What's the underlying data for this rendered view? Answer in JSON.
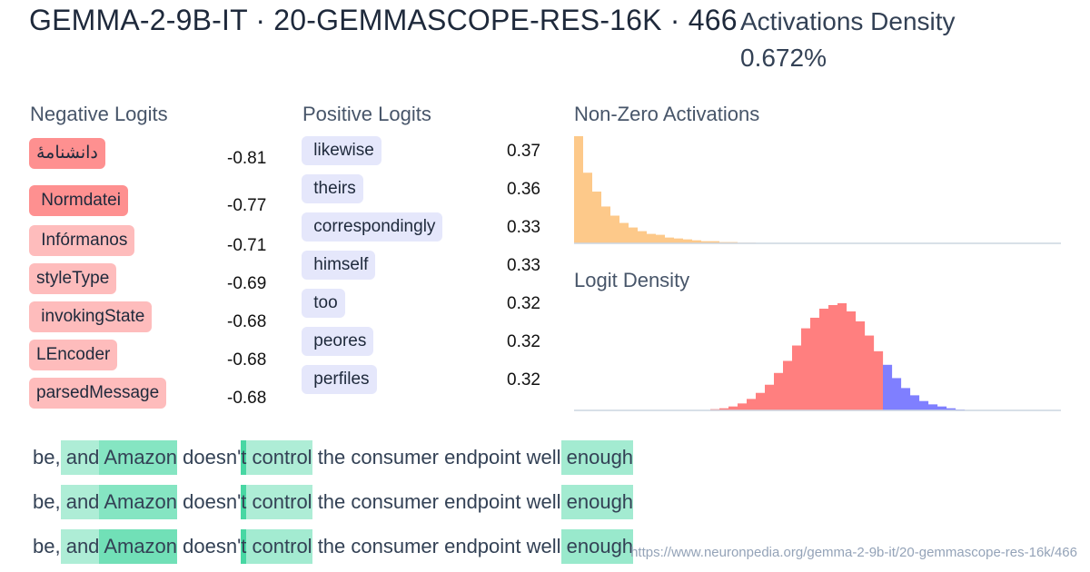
{
  "header": {
    "title": "GEMMA-2-9B-IT · 20-GEMMASCOPE-RES-16K · 466",
    "density_label": "Activations Density",
    "density_value": "0.672%"
  },
  "negative_logits": {
    "heading": "Negative Logits",
    "items": [
      {
        "token": "دانشنامهٔ",
        "value": "-0.81",
        "color": "#fe9090"
      },
      {
        "token": " Normdatei",
        "value": "-0.77",
        "color": "#fe9090"
      },
      {
        "token": " Infórmanos",
        "value": "-0.71",
        "color": "#febcbc"
      },
      {
        "token": "styleType",
        "value": "-0.69",
        "color": "#febcbc"
      },
      {
        "token": " invokingState",
        "value": "-0.68",
        "color": "#febcbc"
      },
      {
        "token": "LEncoder",
        "value": "-0.68",
        "color": "#febcbc"
      },
      {
        "token": "parsedMessage",
        "value": "-0.68",
        "color": "#febcbc"
      }
    ]
  },
  "positive_logits": {
    "heading": "Positive Logits",
    "items": [
      {
        "token": " likewise",
        "value": "0.37"
      },
      {
        "token": " theirs",
        "value": "0.36"
      },
      {
        "token": " correspondingly",
        "value": "0.33"
      },
      {
        "token": " himself",
        "value": "0.33"
      },
      {
        "token": " too",
        "value": "0.32"
      },
      {
        "token": " peores",
        "value": "0.32"
      },
      {
        "token": " perfiles",
        "value": "0.32"
      }
    ]
  },
  "nonzero_activations": {
    "heading": "Non-Zero Activations",
    "color": "#fdc98a",
    "values": [
      352,
      232,
      170,
      121,
      91,
      67,
      52,
      40,
      31,
      28,
      19,
      16,
      13,
      10,
      7,
      7,
      4,
      4,
      2,
      2,
      1
    ]
  },
  "logit_density": {
    "heading": "Logit Density",
    "negative_color": "#ff7f7f",
    "positive_color": "#7f7fff",
    "negative_values": [
      4,
      7,
      13,
      23,
      38,
      58,
      85,
      124,
      164,
      215,
      272,
      307,
      337,
      349,
      355,
      328,
      295,
      248,
      196
    ],
    "positive_values": [
      151,
      107,
      74,
      50,
      31,
      20,
      13,
      7,
      3
    ]
  },
  "examples": [
    [
      {
        "t": "be,",
        "a": 0
      },
      {
        "t": " and",
        "a": 0.4
      },
      {
        "t": " Amazon",
        "a": 0.6
      },
      {
        "t": " doesn'",
        "a": 0
      },
      {
        "t": "t",
        "a": 0.9
      },
      {
        "t": " control",
        "a": 0.4
      },
      {
        "t": " the consumer endpoint well",
        "a": 0
      },
      {
        "t": " enough",
        "a": 0.45
      }
    ],
    [
      {
        "t": "be,",
        "a": 0
      },
      {
        "t": " and",
        "a": 0.4
      },
      {
        "t": " Amazon",
        "a": 0.6
      },
      {
        "t": " doesn'",
        "a": 0
      },
      {
        "t": "t",
        "a": 0.9
      },
      {
        "t": " control",
        "a": 0.4
      },
      {
        "t": " the consumer endpoint well",
        "a": 0
      },
      {
        "t": " enough",
        "a": 0.45
      }
    ],
    [
      {
        "t": "be,",
        "a": 0
      },
      {
        "t": " and",
        "a": 0.4
      },
      {
        "t": " Amazon",
        "a": 0.7
      },
      {
        "t": " doesn'",
        "a": 0
      },
      {
        "t": "t",
        "a": 0.9
      },
      {
        "t": " control",
        "a": 0.45
      },
      {
        "t": " the consumer endpoint well",
        "a": 0
      },
      {
        "t": " enough",
        "a": 0.5
      }
    ]
  ],
  "footer": {
    "url": "https://www.neuronpedia.org/gemma-2-9b-it/20-gemmascope-res-16k/466"
  }
}
